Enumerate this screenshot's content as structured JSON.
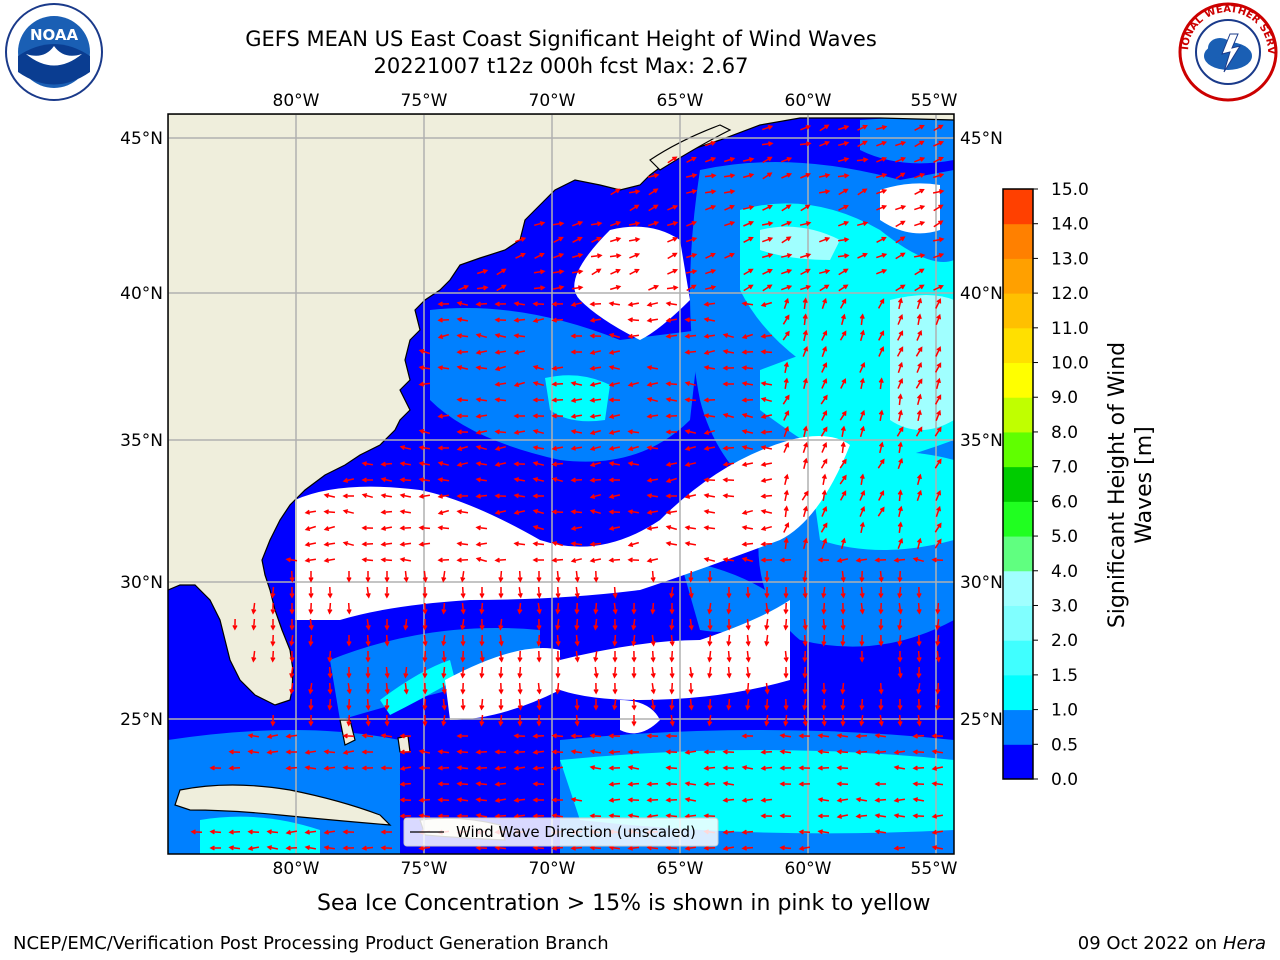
{
  "title_line1": "GEFS MEAN US East Coast Significant Height of Wind Waves",
  "title_line2": "20221007 t12z 000h fcst   Max: 2.67",
  "footer_left": "NCEP/EMC/Verification Post Processing Product Generation Branch",
  "footer_right_prefix": "09 Oct 2022 on ",
  "footer_right_machine": "Hera",
  "sea_ice_note": "Sea Ice Concentration > 15% is shown in pink to yellow",
  "logos": {
    "left": "NOAA",
    "right": "NATIONAL WEATHER SERVICE"
  },
  "legend_label": "Wind Wave Direction (unscaled)",
  "colorbar_label_line1": "Significant Height of Wind",
  "colorbar_label_line2": "Waves [m]",
  "colorbar_ticks": [
    "0.0",
    "0.5",
    "1.0",
    "1.5",
    "2.0",
    "3.0",
    "4.0",
    "5.0",
    "6.0",
    "7.0",
    "8.0",
    "9.0",
    "10.0",
    "11.0",
    "12.0",
    "13.0",
    "14.0",
    "15.0"
  ],
  "colorbar_colors": [
    "#0000ff",
    "#0080ff",
    "#00ffff",
    "#40ffff",
    "#80ffff",
    "#a0ffff",
    "#60ff80",
    "#20ff20",
    "#00cc00",
    "#60ff00",
    "#c0ff00",
    "#ffff00",
    "#ffe000",
    "#ffc000",
    "#ffa000",
    "#ff8000",
    "#ff4000",
    "#ff0000"
  ],
  "lon_labels": [
    "80°W",
    "75°W",
    "70°W",
    "65°W",
    "60°W",
    "55°W"
  ],
  "lat_labels": [
    "45°N",
    "40°N",
    "35°N",
    "30°N",
    "25°N"
  ],
  "map_colors": {
    "land": "#efeedc",
    "ocean_calm": "#ffffff",
    "wave_0_05": "#0000ff",
    "wave_05_1": "#0080ff",
    "wave_1_15": "#00ffff",
    "wave_15_2": "#40ffff",
    "wave_2_3": "#a0ffff",
    "arrow": "#ff0000",
    "grid": "#b0b0b0"
  }
}
